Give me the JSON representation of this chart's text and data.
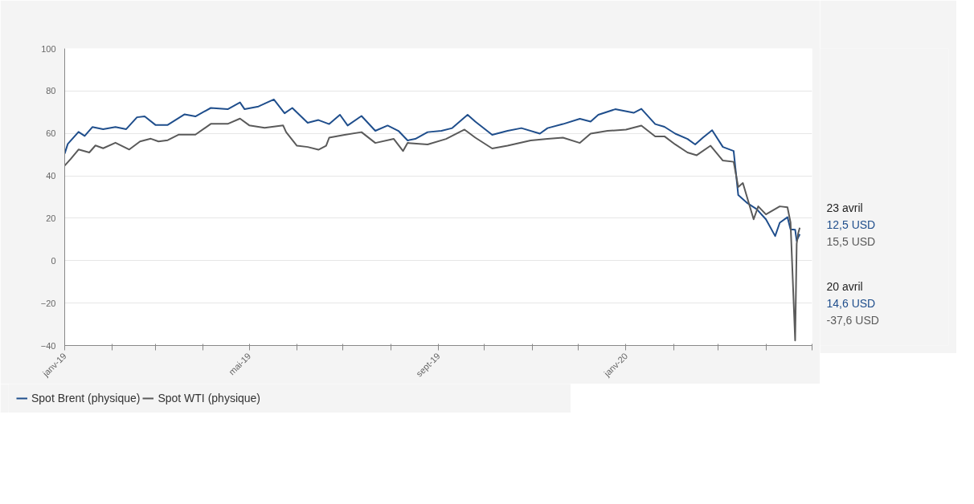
{
  "chart_data": {
    "type": "line",
    "series": [
      {
        "name": "Spot Brent (physique)",
        "color": "#1f4e8c",
        "x": [
          "2019-01-01",
          "2019-01-03",
          "2019-01-10",
          "2019-01-14",
          "2019-01-19",
          "2019-01-26",
          "2019-02-03",
          "2019-02-10",
          "2019-02-17",
          "2019-02-22",
          "2019-03-01",
          "2019-03-09",
          "2019-03-20",
          "2019-03-27",
          "2019-04-06",
          "2019-04-17",
          "2019-04-25",
          "2019-04-28",
          "2019-05-07",
          "2019-05-17",
          "2019-05-24",
          "2019-05-29",
          "2019-06-08",
          "2019-06-15",
          "2019-06-22",
          "2019-06-29",
          "2019-07-04",
          "2019-07-13",
          "2019-07-22",
          "2019-07-30",
          "2019-08-06",
          "2019-08-12",
          "2019-08-17",
          "2019-08-25",
          "2019-09-03",
          "2019-09-10",
          "2019-09-20",
          "2019-09-25",
          "2019-10-06",
          "2019-10-16",
          "2019-10-25",
          "2019-11-06",
          "2019-11-11",
          "2019-11-21",
          "2019-12-02",
          "2019-12-09",
          "2019-12-14",
          "2019-12-25",
          "2020-01-06",
          "2020-01-11",
          "2020-01-20",
          "2020-01-26",
          "2020-02-02",
          "2020-02-10",
          "2020-02-15",
          "2020-02-20",
          "2020-02-26",
          "2020-03-04",
          "2020-03-11",
          "2020-03-14",
          "2020-03-20",
          "2020-03-26",
          "2020-04-01",
          "2020-04-07",
          "2020-04-10",
          "2020-04-15",
          "2020-04-17",
          "2020-04-20",
          "2020-04-21",
          "2020-04-22",
          "2020-04-23"
        ],
        "values": [
          50.5,
          55,
          60.7,
          58.8,
          63,
          62,
          63,
          62,
          67.6,
          68,
          64,
          64,
          69,
          68,
          72,
          71.4,
          74.6,
          71.4,
          72.7,
          76,
          69.5,
          72,
          65,
          66.3,
          64.4,
          68.8,
          63.7,
          68.2,
          61.2,
          63.7,
          61.2,
          56.7,
          57.4,
          60.6,
          61.2,
          62.5,
          68.8,
          65.6,
          59.3,
          61.2,
          62.5,
          59.9,
          62.5,
          64.4,
          66.9,
          65.6,
          68.8,
          71.4,
          69.7,
          71.6,
          64.4,
          63.1,
          59.9,
          57.4,
          54.8,
          58,
          61.5,
          53.6,
          51.7,
          30.9,
          27.1,
          24.3,
          19.5,
          11.6,
          17.9,
          20.5,
          14.8,
          14.6,
          9.3,
          11,
          12.5
        ]
      },
      {
        "name": "Spot WTI (physique)",
        "color": "#5a5a5a",
        "x": [
          "2019-01-01",
          "2019-01-05",
          "2019-01-10",
          "2019-01-17",
          "2019-01-21",
          "2019-01-26",
          "2019-02-03",
          "2019-02-12",
          "2019-02-19",
          "2019-02-26",
          "2019-03-03",
          "2019-03-09",
          "2019-03-16",
          "2019-03-27",
          "2019-04-06",
          "2019-04-17",
          "2019-04-25",
          "2019-05-01",
          "2019-05-11",
          "2019-05-23",
          "2019-05-25",
          "2019-06-01",
          "2019-06-08",
          "2019-06-15",
          "2019-06-20",
          "2019-06-22",
          "2019-07-02",
          "2019-07-13",
          "2019-07-22",
          "2019-08-03",
          "2019-08-09",
          "2019-08-12",
          "2019-08-25",
          "2019-09-06",
          "2019-09-18",
          "2019-09-25",
          "2019-10-06",
          "2019-10-16",
          "2019-10-31",
          "2019-11-11",
          "2019-11-21",
          "2019-12-02",
          "2019-12-09",
          "2019-12-20",
          "2020-01-01",
          "2020-01-11",
          "2020-01-20",
          "2020-01-26",
          "2020-02-02",
          "2020-02-10",
          "2020-02-16",
          "2020-02-25",
          "2020-03-04",
          "2020-03-11",
          "2020-03-14",
          "2020-03-17",
          "2020-03-24",
          "2020-03-27",
          "2020-04-01",
          "2020-04-10",
          "2020-04-15",
          "2020-04-17",
          "2020-04-20",
          "2020-04-21",
          "2020-04-22",
          "2020-04-23"
        ],
        "values": [
          44.8,
          48,
          52.4,
          51,
          54.3,
          53,
          55.6,
          52.4,
          56.2,
          57.5,
          56.2,
          56.8,
          59.4,
          59.4,
          64.5,
          64.5,
          67,
          63.8,
          62.6,
          63.8,
          60.6,
          54.2,
          53.6,
          52.3,
          54.2,
          58,
          59.3,
          60.6,
          55.5,
          57.4,
          51.7,
          55.5,
          54.8,
          57.4,
          61.8,
          58,
          52.9,
          54.2,
          56.7,
          57.4,
          58,
          55.5,
          59.9,
          61.2,
          61.8,
          63.7,
          58.6,
          58.6,
          54.8,
          51,
          49.7,
          54.2,
          47.2,
          46.6,
          34.7,
          36.6,
          19.5,
          25.6,
          21.8,
          25.6,
          25.2,
          18,
          -37.6,
          8,
          13,
          15.5
        ]
      }
    ],
    "xlim": [
      "2019-01-01",
      "2020-05-01"
    ],
    "xticks": [
      {
        "value": "2019-01-01",
        "label": "janv-19"
      },
      {
        "value": "2019-02-01",
        "label": null
      },
      {
        "value": "2019-03-01",
        "label": null
      },
      {
        "value": "2019-04-01",
        "label": null
      },
      {
        "value": "2019-05-01",
        "label": "mai-19"
      },
      {
        "value": "2019-06-01",
        "label": null
      },
      {
        "value": "2019-07-01",
        "label": null
      },
      {
        "value": "2019-08-01",
        "label": null
      },
      {
        "value": "2019-09-01",
        "label": "sept-19"
      },
      {
        "value": "2019-10-01",
        "label": null
      },
      {
        "value": "2019-11-01",
        "label": null
      },
      {
        "value": "2019-12-01",
        "label": null
      },
      {
        "value": "2020-01-01",
        "label": "janv-20"
      },
      {
        "value": "2020-02-01",
        "label": null
      },
      {
        "value": "2020-03-01",
        "label": null
      },
      {
        "value": "2020-04-01",
        "label": null
      },
      {
        "value": "2020-05-01",
        "label": null
      }
    ],
    "ylim": [
      -40,
      100
    ],
    "yticks": [
      -40,
      -20,
      0,
      20,
      40,
      60,
      80,
      100
    ],
    "grid": "y",
    "legend": "bottom left",
    "line_style": "solid",
    "annotations": [
      "23 avril",
      "12,5 USD",
      "15,5 USD",
      "20 avril",
      "14,6 USD",
      "-37,6 USD"
    ]
  }
}
